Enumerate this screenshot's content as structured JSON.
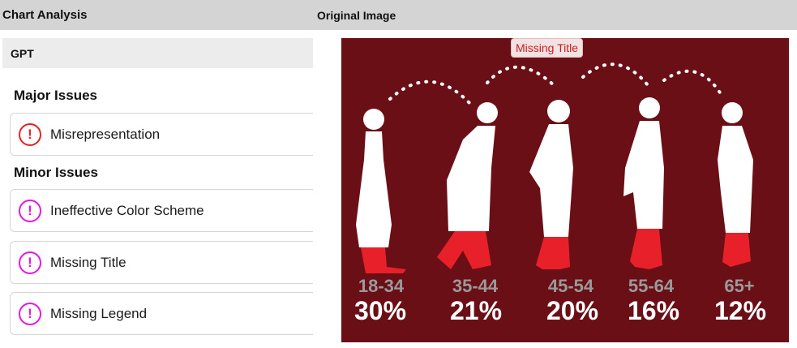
{
  "header": {
    "left_title": "Chart Analysis",
    "right_title": "Original Image"
  },
  "panel": {
    "model_label": "GPT",
    "major_title": "Major Issues",
    "minor_title": "Minor Issues",
    "major_issues": [
      {
        "label": "Misrepresentation",
        "icon": "exclamation-circle-icon",
        "color": "#e32222"
      }
    ],
    "minor_issues": [
      {
        "label": "Ineffective Color Scheme",
        "icon": "exclamation-circle-icon",
        "color": "#e617e6"
      },
      {
        "label": "Missing Title",
        "icon": "exclamation-circle-icon",
        "color": "#e617e6"
      },
      {
        "label": "Missing Legend",
        "icon": "exclamation-circle-icon",
        "color": "#e617e6"
      }
    ],
    "icon_glyph": "!"
  },
  "image": {
    "badge": "Missing Title",
    "background": "#6b0f17",
    "highlight_color": "#e8202a"
  },
  "chart_data": {
    "type": "bar",
    "categories": [
      "18-34",
      "35-44",
      "45-54",
      "55-64",
      "65+"
    ],
    "values": [
      30,
      21,
      20,
      16,
      12
    ],
    "labels": [
      "30%",
      "21%",
      "20%",
      "16%",
      "12%"
    ],
    "title": "",
    "xlabel": "",
    "ylabel": ""
  }
}
